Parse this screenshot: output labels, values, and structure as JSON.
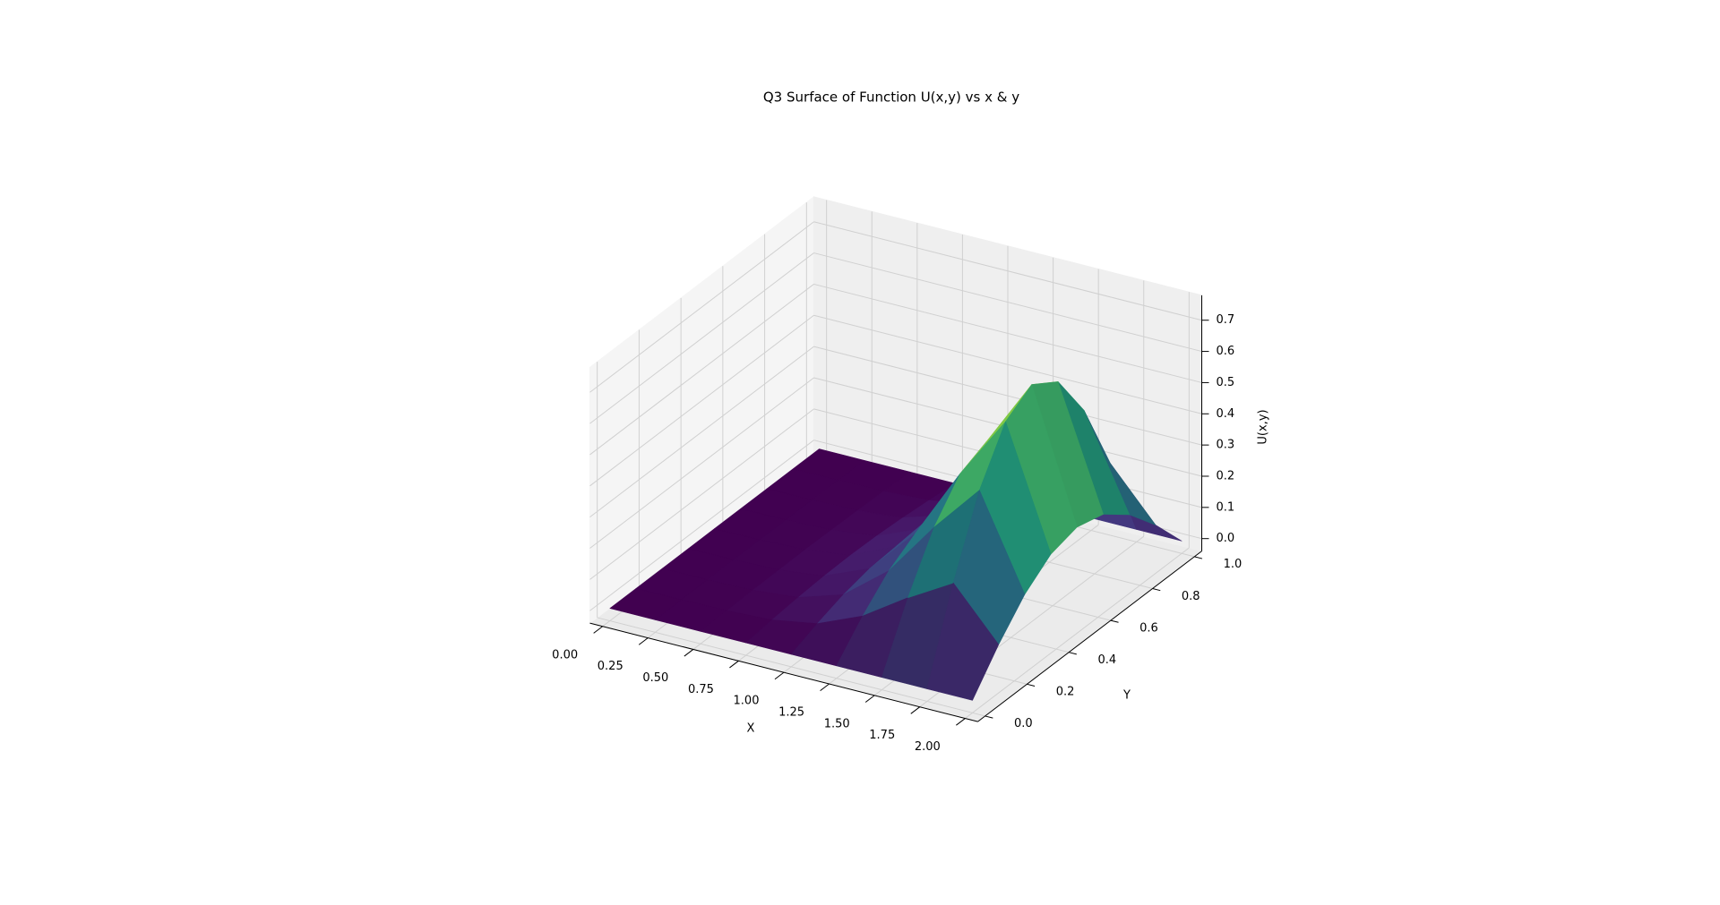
{
  "chart_data": {
    "type": "surface",
    "title": "Q3 Surface of Function U(x,y) vs x & y",
    "x_label": "X",
    "y_label": "Y",
    "z_label": "U(x,y)",
    "colormap": "viridis",
    "grid": true,
    "elevation": 30,
    "azimuth": -60,
    "x": [
      0,
      0.25,
      0.5,
      0.75,
      1.0,
      1.25,
      1.5,
      1.75,
      2.0
    ],
    "y": [
      0,
      0.125,
      0.25,
      0.375,
      0.5,
      0.625,
      0.75,
      0.875,
      1.0
    ],
    "z": [
      [
        0,
        0,
        0,
        0,
        0,
        0,
        0,
        0,
        0
      ],
      [
        0,
        0.0004,
        0.0007,
        0.0009,
        0.001,
        0.0009,
        0.0007,
        0.0004,
        0
      ],
      [
        0,
        0.0023,
        0.0042,
        0.0055,
        0.006,
        0.0055,
        0.0042,
        0.0023,
        0
      ],
      [
        0,
        0.0096,
        0.0177,
        0.0231,
        0.025,
        0.0231,
        0.0177,
        0.0096,
        0
      ],
      [
        0,
        0.0345,
        0.0636,
        0.0832,
        0.09,
        0.0832,
        0.0636,
        0.0345,
        0
      ],
      [
        0,
        0.0958,
        0.1768,
        0.231,
        0.25,
        0.231,
        0.1768,
        0.0958,
        0
      ],
      [
        0,
        0.1915,
        0.3535,
        0.462,
        0.5,
        0.462,
        0.3535,
        0.1915,
        0
      ],
      [
        0,
        0.2758,
        0.509,
        0.6653,
        0.72,
        0.6653,
        0.509,
        0.2758,
        0
      ],
      [
        0,
        0.1149,
        0.2121,
        0.2772,
        0.3,
        0.2772,
        0.2121,
        0.1149,
        0
      ]
    ],
    "xlim": [
      -0.07,
      2.07
    ],
    "ylim": [
      -0.035,
      1.035
    ],
    "zlim": [
      -0.04,
      0.78
    ],
    "xticks": [
      {
        "value": 0,
        "label": "0.00"
      },
      0.25,
      {
        "value": 0.5,
        "label": "0.50"
      },
      0.75,
      {
        "value": 1,
        "label": "1.00"
      },
      1.25,
      {
        "value": 1.5,
        "label": "1.50"
      },
      1.75,
      {
        "value": 2,
        "label": "2.00"
      }
    ],
    "yticks": [
      {
        "value": 0,
        "label": "0.0"
      },
      0.2,
      0.4,
      0.6,
      0.8,
      {
        "value": 1,
        "label": "1.0"
      }
    ],
    "zticks": [
      {
        "value": 0,
        "label": "0.0"
      },
      0.1,
      0.2,
      0.3,
      0.4,
      0.5,
      0.6,
      0.7
    ]
  }
}
